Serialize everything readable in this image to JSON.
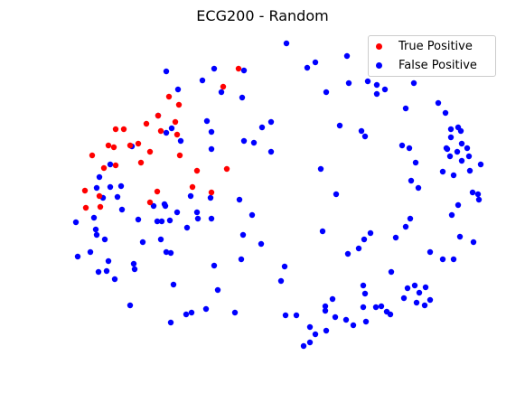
{
  "chart_data": {
    "type": "scatter",
    "title": "ECG200 - Random",
    "axes_visible": false,
    "grid": false,
    "legend_position": "top-right",
    "series": [
      {
        "name": "True Positive",
        "color": "#ff0000",
        "points": [
          [
            264,
            76
          ],
          [
            247,
            96
          ],
          [
            187,
            107
          ],
          [
            198,
            116
          ],
          [
            175,
            128
          ],
          [
            128,
            143
          ],
          [
            137,
            143
          ],
          [
            162,
            137
          ],
          [
            194,
            135
          ],
          [
            178,
            145
          ],
          [
            120,
            161
          ],
          [
            126,
            163
          ],
          [
            153,
            159
          ],
          [
            144,
            161
          ],
          [
            166,
            168
          ],
          [
            102,
            172
          ],
          [
            196,
            149
          ],
          [
            199,
            172
          ],
          [
            115,
            186
          ],
          [
            128,
            183
          ],
          [
            156,
            180
          ],
          [
            218,
            189
          ],
          [
            251,
            187
          ],
          [
            94,
            211
          ],
          [
            110,
            217
          ],
          [
            213,
            207
          ],
          [
            234,
            213
          ],
          [
            174,
            212
          ],
          [
            95,
            230
          ],
          [
            111,
            229
          ],
          [
            166,
            224
          ]
        ]
      },
      {
        "name": "False Positive",
        "color": "#0000ff",
        "points": [
          [
            317,
            48
          ],
          [
            349,
            69
          ],
          [
            340,
            75
          ],
          [
            384,
            62
          ],
          [
            184,
            79
          ],
          [
            237,
            76
          ],
          [
            270,
            78
          ],
          [
            224,
            89
          ],
          [
            245,
            102
          ],
          [
            361,
            102
          ],
          [
            386,
            92
          ],
          [
            407,
            90
          ],
          [
            417,
            94
          ],
          [
            426,
            99
          ],
          [
            458,
            92
          ],
          [
            197,
            99
          ],
          [
            268,
            108
          ],
          [
            417,
            104
          ],
          [
            175,
            128
          ],
          [
            184,
            147
          ],
          [
            190,
            142
          ],
          [
            229,
            134
          ],
          [
            234,
            146
          ],
          [
            300,
            135
          ],
          [
            290,
            141
          ],
          [
            376,
            139
          ],
          [
            400,
            145
          ],
          [
            404,
            151
          ],
          [
            449,
            120
          ],
          [
            485,
            114
          ],
          [
            493,
            125
          ],
          [
            499,
            143
          ],
          [
            507,
            141
          ],
          [
            510,
            145
          ],
          [
            499,
            152
          ],
          [
            511,
            159
          ],
          [
            517,
            164
          ],
          [
            495,
            165
          ],
          [
            506,
            168
          ],
          [
            519,
            173
          ],
          [
            498,
            173
          ],
          [
            511,
            178
          ],
          [
            532,
            182
          ],
          [
            520,
            189
          ],
          [
            490,
            190
          ],
          [
            502,
            194
          ],
          [
            460,
            180
          ],
          [
            453,
            164
          ],
          [
            445,
            161
          ],
          [
            494,
            164
          ],
          [
            146,
            162
          ],
          [
            200,
            156
          ],
          [
            270,
            156
          ],
          [
            281,
            158
          ],
          [
            234,
            165
          ],
          [
            300,
            168
          ],
          [
            355,
            187
          ],
          [
            122,
            182
          ],
          [
            110,
            196
          ],
          [
            107,
            208
          ],
          [
            122,
            207
          ],
          [
            134,
            206
          ],
          [
            130,
            218
          ],
          [
            114,
            219
          ],
          [
            372,
            215
          ],
          [
            455,
            200
          ],
          [
            463,
            208
          ],
          [
            523,
            213
          ],
          [
            529,
            215
          ],
          [
            507,
            227
          ],
          [
            530,
            221
          ],
          [
            500,
            238
          ],
          [
            265,
            221
          ],
          [
            211,
            217
          ],
          [
            233,
            219
          ],
          [
            135,
            232
          ],
          [
            104,
            241
          ],
          [
            170,
            228
          ],
          [
            183,
            228
          ],
          [
            182,
            226
          ],
          [
            196,
            235
          ],
          [
            218,
            235
          ],
          [
            219,
            242
          ],
          [
            234,
            242
          ],
          [
            279,
            238
          ],
          [
            153,
            243
          ],
          [
            174,
            245
          ],
          [
            179,
            245
          ],
          [
            207,
            252
          ],
          [
            188,
            244
          ],
          [
            106,
            254
          ],
          [
            107,
            260
          ],
          [
            116,
            265
          ],
          [
            158,
            268
          ],
          [
            178,
            265
          ],
          [
            269,
            260
          ],
          [
            289,
            270
          ],
          [
            357,
            256
          ],
          [
            410,
            258
          ],
          [
            403,
            265
          ],
          [
            397,
            275
          ],
          [
            385,
            281
          ],
          [
            438,
            263
          ],
          [
            449,
            251
          ],
          [
            454,
            242
          ],
          [
            509,
            262
          ],
          [
            524,
            268
          ],
          [
            476,
            279
          ],
          [
            490,
            287
          ],
          [
            502,
            287
          ],
          [
            100,
            279
          ],
          [
            120,
            289
          ],
          [
            86,
            284
          ],
          [
            109,
            301
          ],
          [
            118,
            300
          ],
          [
            127,
            309
          ],
          [
            148,
            292
          ],
          [
            149,
            298
          ],
          [
            184,
            279
          ],
          [
            189,
            280
          ],
          [
            237,
            294
          ],
          [
            267,
            287
          ],
          [
            315,
            295
          ],
          [
            311,
            311
          ],
          [
            241,
            321
          ],
          [
            192,
            315
          ],
          [
            433,
            301
          ],
          [
            402,
            316
          ],
          [
            404,
            325
          ],
          [
            451,
            319
          ],
          [
            459,
            316
          ],
          [
            471,
            318
          ],
          [
            464,
            324
          ],
          [
            476,
            332
          ],
          [
            470,
            338
          ],
          [
            447,
            330
          ],
          [
            422,
            339
          ],
          [
            461,
            335
          ],
          [
            144,
            338
          ],
          [
            228,
            342
          ],
          [
            260,
            346
          ],
          [
            212,
            346
          ],
          [
            206,
            348
          ],
          [
            189,
            357
          ],
          [
            316,
            349
          ],
          [
            328,
            349
          ],
          [
            360,
            339
          ],
          [
            368,
            331
          ],
          [
            360,
            344
          ],
          [
            371,
            351
          ],
          [
            383,
            354
          ],
          [
            391,
            360
          ],
          [
            402,
            340
          ],
          [
            405,
            356
          ],
          [
            416,
            340
          ],
          [
            428,
            345
          ],
          [
            432,
            348
          ],
          [
            343,
            362
          ],
          [
            361,
            366
          ],
          [
            349,
            370
          ],
          [
            343,
            379
          ],
          [
            336,
            383
          ],
          [
            84,
            246
          ]
        ]
      }
    ]
  }
}
